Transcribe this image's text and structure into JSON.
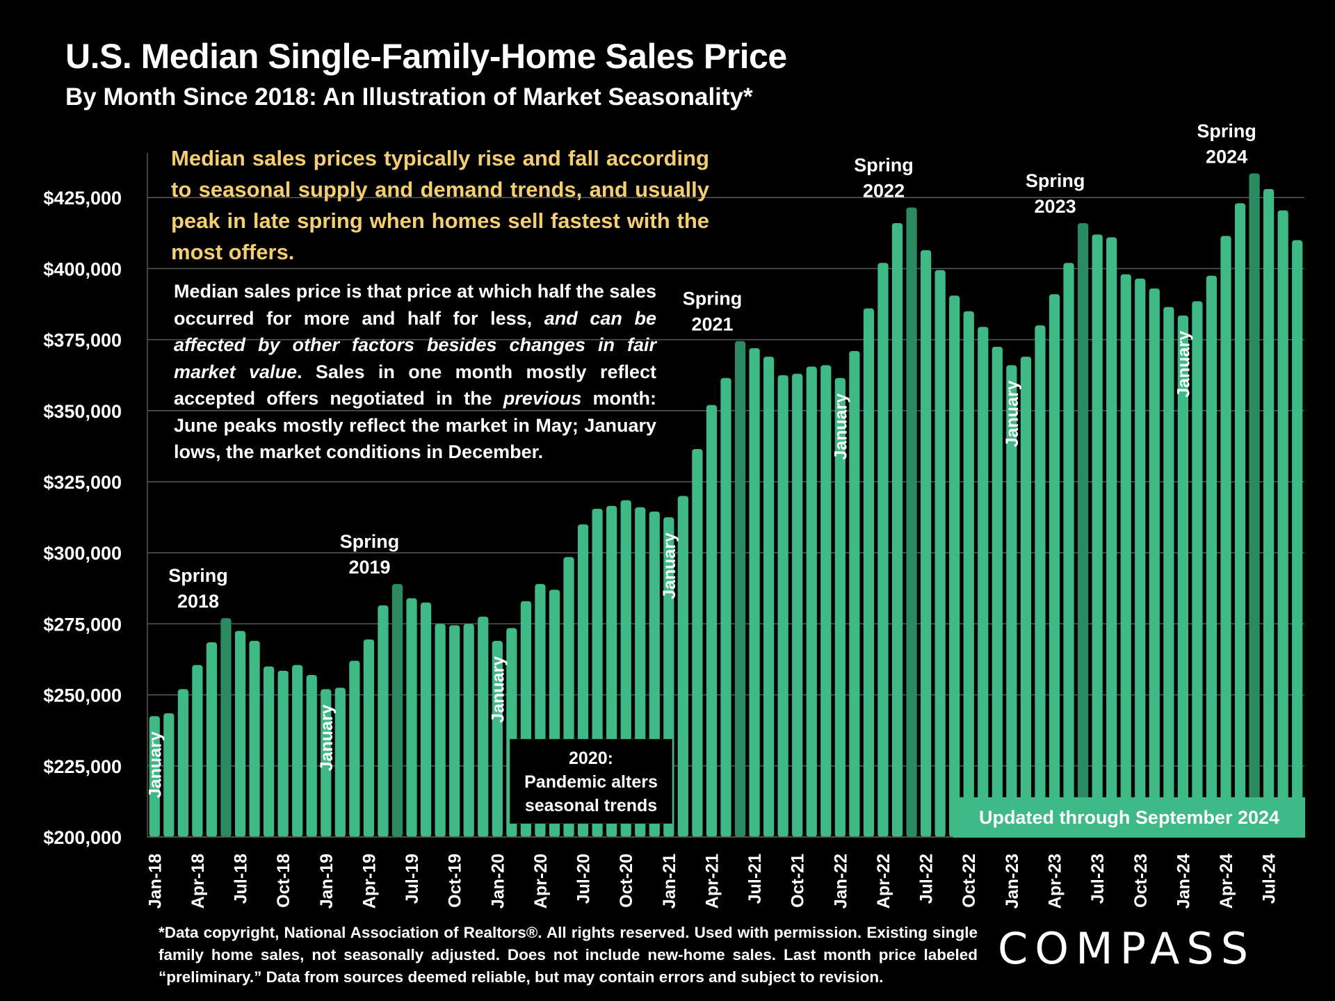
{
  "header": {
    "title": "U.S. Median Single-Family-Home Sales Price",
    "subtitle": "By Month Since 2018: An Illustration of Market Seasonality*"
  },
  "callout": "Median sales prices typically rise and fall according to seasonal supply and demand trends, and usually peak in late spring when homes sell fastest with the most offers.",
  "note": {
    "part1": "Median sales price is that price at which half the sales occurred for more and half for less, ",
    "italic1": "and can be affected by other factors besides changes in fair market value",
    "part2": ". Sales in one month mostly reflect accepted offers negotiated in the ",
    "italic2": "previous",
    "part3": " month: June peaks mostly reflect the market in May; January lows, the market conditions in December."
  },
  "pandemic_box": {
    "line1": "2020:",
    "line2": "Pandemic alters",
    "line3": "seasonal trends"
  },
  "updated_banner": "Updated through September 2024",
  "footnote": "*Data copyright, National Association of Realtors®. All rights reserved. Used with permission. Existing single family home sales, not seasonally adjusted. Does not include new-home sales. Last month price labeled “preliminary.” Data from sources deemed reliable, but may contain errors and subject to revision.",
  "logo": "COMPASS",
  "colors": {
    "bar": "#3dba85",
    "peak_bar": "#2a8a62",
    "callout": "#f5cf6a",
    "background": "#000000"
  },
  "chart_data": {
    "type": "bar",
    "title": "U.S. Median Single-Family-Home Sales Price",
    "xlabel": "",
    "ylabel": "",
    "ylim": [
      200000,
      437500
    ],
    "grid": true,
    "yticks": [
      200000,
      225000,
      250000,
      275000,
      300000,
      325000,
      350000,
      375000,
      400000,
      425000
    ],
    "ytick_labels": [
      "$200,000",
      "$225,000",
      "$250,000",
      "$275,000",
      "$300,000",
      "$325,000",
      "$350,000",
      "$375,000",
      "$400,000",
      "$425,000"
    ],
    "categories": [
      "Jan-18",
      "Feb-18",
      "Mar-18",
      "Apr-18",
      "May-18",
      "Jun-18",
      "Jul-18",
      "Aug-18",
      "Sep-18",
      "Oct-18",
      "Nov-18",
      "Dec-18",
      "Jan-19",
      "Feb-19",
      "Mar-19",
      "Apr-19",
      "May-19",
      "Jun-19",
      "Jul-19",
      "Aug-19",
      "Sep-19",
      "Oct-19",
      "Nov-19",
      "Dec-19",
      "Jan-20",
      "Feb-20",
      "Mar-20",
      "Apr-20",
      "May-20",
      "Jun-20",
      "Jul-20",
      "Aug-20",
      "Sep-20",
      "Oct-20",
      "Nov-20",
      "Dec-20",
      "Jan-21",
      "Feb-21",
      "Mar-21",
      "Apr-21",
      "May-21",
      "Jun-21",
      "Jul-21",
      "Aug-21",
      "Sep-21",
      "Oct-21",
      "Nov-21",
      "Dec-21",
      "Jan-22",
      "Feb-22",
      "Mar-22",
      "Apr-22",
      "May-22",
      "Jun-22",
      "Jul-22",
      "Aug-22",
      "Sep-22",
      "Oct-22",
      "Nov-22",
      "Dec-22",
      "Jan-23",
      "Feb-23",
      "Mar-23",
      "Apr-23",
      "May-23",
      "Jun-23",
      "Jul-23",
      "Aug-23",
      "Sep-23",
      "Oct-23",
      "Nov-23",
      "Dec-23",
      "Jan-24",
      "Feb-24",
      "Mar-24",
      "Apr-24",
      "May-24",
      "Jun-24",
      "Jul-24",
      "Aug-24",
      "Sep-24"
    ],
    "values": [
      242500,
      243500,
      252000,
      260500,
      268500,
      277000,
      272500,
      269000,
      260000,
      258500,
      260500,
      257000,
      252000,
      252500,
      262000,
      269500,
      281500,
      289000,
      284000,
      282500,
      275000,
      274500,
      275000,
      277500,
      269000,
      273500,
      283000,
      289000,
      287000,
      298500,
      310000,
      315500,
      316500,
      318500,
      316000,
      314500,
      312500,
      320000,
      336500,
      352000,
      361500,
      374500,
      372000,
      369000,
      362500,
      363000,
      365500,
      366000,
      361500,
      371000,
      386000,
      402000,
      416000,
      421500,
      406500,
      399500,
      390500,
      385000,
      379500,
      372500,
      366000,
      369000,
      380000,
      391000,
      402000,
      416000,
      412000,
      411000,
      398000,
      396500,
      393000,
      386500,
      383500,
      388500,
      397500,
      411500,
      423000,
      433500,
      428000,
      420500,
      410000
    ],
    "highlighted": [
      "Jun-18",
      "Jun-19",
      "Jun-21",
      "Jun-22",
      "Jun-23",
      "Jun-24"
    ],
    "xtick_labels": [
      "Jan-18",
      "Apr-18",
      "Jul-18",
      "Oct-18",
      "Jan-19",
      "Apr-19",
      "Jul-19",
      "Oct-19",
      "Jan-20",
      "Apr-20",
      "Jul-20",
      "Oct-20",
      "Jan-21",
      "Apr-21",
      "Jul-21",
      "Oct-21",
      "Jan-22",
      "Apr-22",
      "Jul-22",
      "Oct-22",
      "Jan-23",
      "Apr-23",
      "Jul-23",
      "Oct-23",
      "Jan-24",
      "Apr-24",
      "Jul-24"
    ],
    "annotations": [
      {
        "text": [
          "Spring",
          "2018"
        ],
        "at": "Jun-18"
      },
      {
        "text": [
          "Spring",
          "2019"
        ],
        "at": "Jun-19"
      },
      {
        "text": [
          "Spring",
          "2021"
        ],
        "at": "Jun-21"
      },
      {
        "text": [
          "Spring",
          "2022"
        ],
        "at": "Jun-22"
      },
      {
        "text": [
          "Spring",
          "2023"
        ],
        "at": "Jun-23"
      },
      {
        "text": [
          "Spring",
          "2024"
        ],
        "at": "Jun-24"
      }
    ],
    "january_labels": [
      {
        "text": "January",
        "at": "Jan-18"
      },
      {
        "text": "January",
        "at": "Jan-19"
      },
      {
        "text": "January",
        "at": "Jan-20"
      },
      {
        "text": "January",
        "at": "Jan-21"
      },
      {
        "text": "January",
        "at": "Jan-22"
      },
      {
        "text": "January",
        "at": "Jan-23"
      },
      {
        "text": "January",
        "at": "Jan-24"
      }
    ]
  }
}
